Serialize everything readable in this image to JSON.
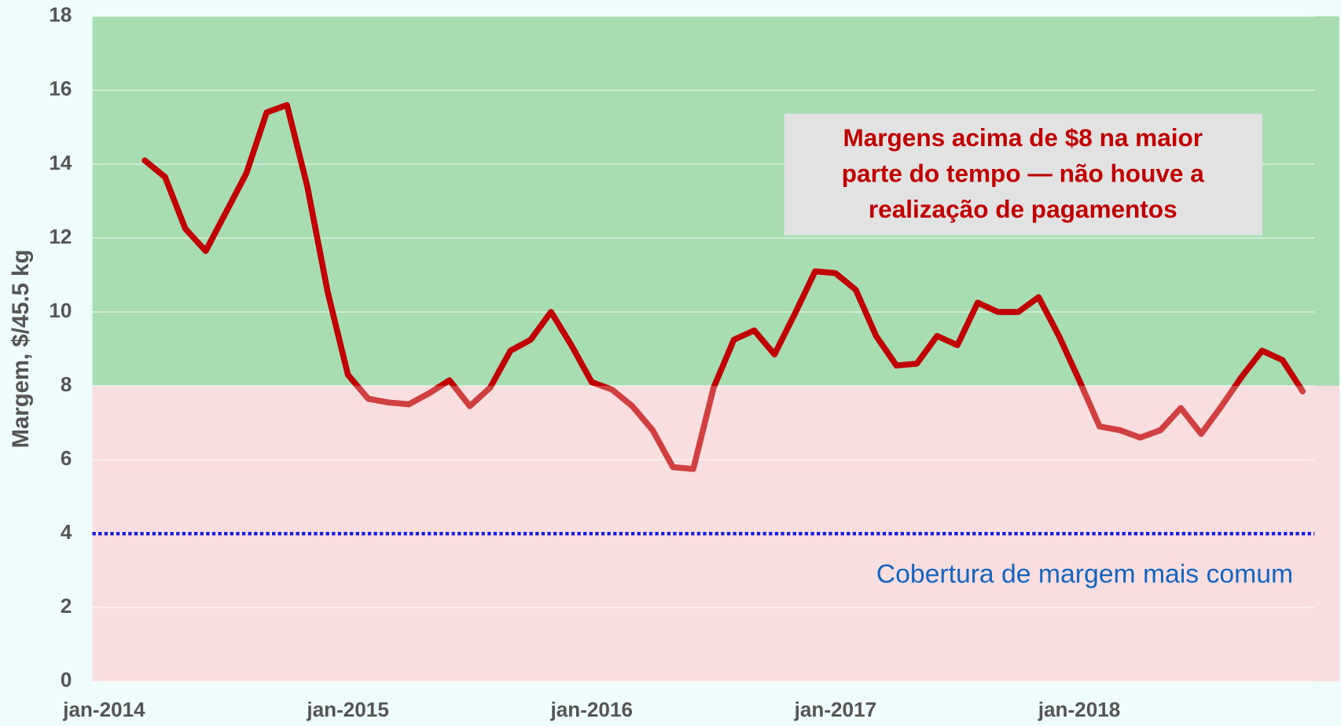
{
  "chart_data": {
    "type": "line",
    "y_label": "Margem, $/45.5 kg",
    "x": [
      "2014-03",
      "2014-04",
      "2014-05",
      "2014-06",
      "2014-07",
      "2014-08",
      "2014-09",
      "2014-10",
      "2014-11",
      "2014-12",
      "2015-01",
      "2015-02",
      "2015-03",
      "2015-04",
      "2015-05",
      "2015-06",
      "2015-07",
      "2015-08",
      "2015-09",
      "2015-10",
      "2015-11",
      "2015-12",
      "2016-01",
      "2016-02",
      "2016-03",
      "2016-04",
      "2016-05",
      "2016-06",
      "2016-07",
      "2016-08",
      "2016-09",
      "2016-10",
      "2016-11",
      "2016-12",
      "2017-01",
      "2017-02",
      "2017-03",
      "2017-04",
      "2017-05",
      "2017-06",
      "2017-07",
      "2017-08",
      "2017-09",
      "2017-10",
      "2017-11",
      "2017-12",
      "2018-01",
      "2018-02",
      "2018-03",
      "2018-04",
      "2018-05",
      "2018-06",
      "2018-07",
      "2018-08",
      "2018-09",
      "2018-10",
      "2018-11",
      "2018-12"
    ],
    "series": [
      {
        "color": "#c00000",
        "values": [
          14.1,
          13.65,
          12.25,
          11.65,
          12.7,
          13.75,
          15.4,
          15.6,
          13.4,
          10.55,
          8.3,
          7.65,
          7.55,
          7.5,
          7.8,
          8.15,
          7.45,
          7.95,
          8.95,
          9.25,
          10.0,
          9.1,
          8.1,
          7.9,
          7.45,
          6.8,
          5.8,
          5.75,
          7.95,
          9.25,
          9.5,
          8.85,
          9.95,
          11.1,
          11.05,
          10.6,
          9.35,
          8.55,
          8.6,
          9.35,
          9.1,
          10.25,
          10.0,
          10.0,
          10.4,
          9.35,
          8.15,
          6.9,
          6.8,
          6.6,
          6.8,
          7.4,
          6.7,
          7.45,
          8.25,
          8.95,
          8.7,
          7.85
        ]
      }
    ],
    "xlim": [
      "2013-12",
      "2019-01"
    ],
    "xticks": [
      {
        "value": "2014-01",
        "label": "jan-2014"
      },
      {
        "value": "2015-01",
        "label": "jan-2015"
      },
      {
        "value": "2016-01",
        "label": "jan-2016"
      },
      {
        "value": "2017-01",
        "label": "jan-2017"
      },
      {
        "value": "2018-01",
        "label": "jan-2018"
      }
    ],
    "ylim": [
      0,
      18
    ],
    "yticks": [
      0,
      2,
      4,
      6,
      8,
      10,
      12,
      14,
      16,
      18
    ],
    "grid": true,
    "bands": [
      {
        "from": 8,
        "to": 18,
        "color": "#a8dcb2"
      },
      {
        "from": 0,
        "to": 8,
        "color": "#f6d3d3"
      }
    ],
    "reference_line": {
      "value": 4,
      "color": "#1a1ae0",
      "label": "Cobertura de margem mais comum",
      "label_color": "#1565c0"
    },
    "annotation": {
      "lines": [
        "Margens acima de $8 na maior",
        "parte do tempo — não houve a",
        "realização de pagamentos"
      ],
      "color": "#c00000",
      "box": "#e2e2e2"
    }
  }
}
